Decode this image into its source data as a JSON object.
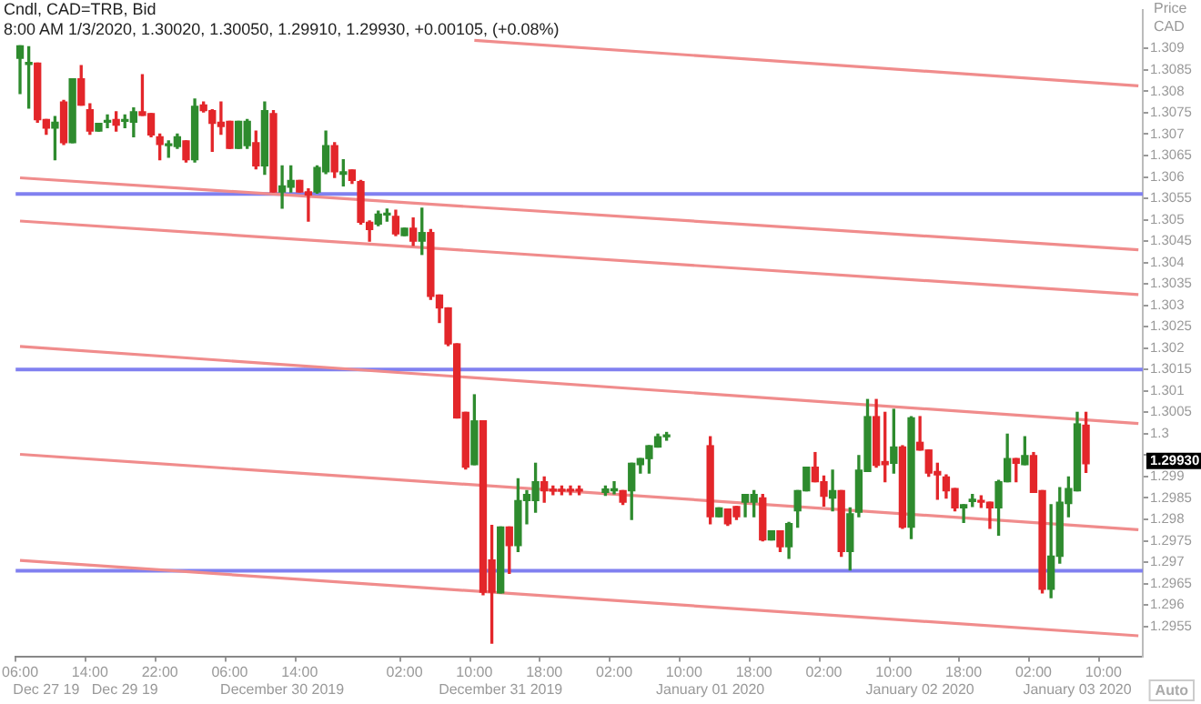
{
  "chart_data": {
    "type": "candlestick",
    "title": "Cndl, CAD=TRB, Bid",
    "subtitle": "8:00 AM 1/3/2020, 1.30020, 1.30050, 1.29910, 1.29930, +0.00105, (+0.08%)",
    "ylabel": "Price CAD",
    "categories": [
      "06:00",
      null,
      null,
      "\nDec 27 19",
      null,
      null,
      null,
      null,
      "14:00",
      null,
      null,
      null,
      "\nDec 29 19",
      null,
      null,
      null,
      "22:00",
      null,
      null,
      null,
      null,
      null,
      null,
      null,
      "06:00",
      null,
      null,
      null,
      null,
      null,
      "\nDecember 30 2019",
      null,
      "14:00",
      null,
      null,
      null,
      null,
      null,
      null,
      null,
      null,
      null,
      null,
      null,
      "02:00",
      null,
      null,
      null,
      null,
      null,
      null,
      null,
      "10:00",
      null,
      null,
      "\nDecember 31 2019",
      null,
      null,
      null,
      null,
      "18:00",
      null,
      null,
      null,
      null,
      null,
      null,
      null,
      "02:00",
      null,
      null,
      null,
      null,
      null,
      null,
      null,
      "10:00",
      null,
      null,
      "\nJanuary 01 2020",
      null,
      null,
      null,
      null,
      "18:00",
      null,
      null,
      null,
      null,
      null,
      null,
      null,
      "02:00",
      null,
      null,
      null,
      null,
      null,
      null,
      null,
      "10:00",
      null,
      null,
      "\nJanuary 02 2020",
      null,
      null,
      null,
      null,
      "18:00",
      null,
      null,
      null,
      null,
      null,
      null,
      null,
      "02:00",
      null,
      null,
      null,
      null,
      "\nJanuary 03 2020",
      null,
      null,
      "10:00",
      null,
      null,
      null,
      null
    ],
    "ohlc": [
      [
        1.30877,
        1.30906,
        1.30795,
        1.30906
      ],
      [
        1.30863,
        1.30904,
        1.30761,
        1.30863
      ],
      [
        1.30866,
        1.30866,
        1.30728,
        1.30734
      ],
      [
        1.30734,
        1.30734,
        1.307,
        1.30714
      ],
      [
        1.30714,
        1.30741,
        1.3064,
        1.30728
      ],
      [
        1.30775,
        1.30779,
        1.30676,
        1.3068
      ],
      [
        1.3068,
        1.30829,
        1.3068,
        1.30829
      ],
      [
        1.30829,
        1.3086,
        1.30768,
        1.30768
      ],
      [
        1.30757,
        1.30771,
        1.307,
        1.30707
      ],
      [
        1.30707,
        1.30725,
        1.30707,
        1.30725
      ],
      [
        1.30728,
        1.30745,
        1.30715,
        1.30728
      ],
      [
        1.30734,
        1.30752,
        1.30707,
        1.30721
      ],
      [
        1.3073,
        1.30745,
        1.30715,
        1.3073
      ],
      [
        1.30728,
        1.30761,
        1.30694,
        1.30752
      ],
      [
        1.30752,
        1.30839,
        1.30744,
        1.30744
      ],
      [
        1.30748,
        1.30748,
        1.30694,
        1.30698
      ],
      [
        1.30694,
        1.307,
        1.3064,
        1.30676
      ],
      [
        1.30673,
        1.30684,
        1.30646,
        1.30673
      ],
      [
        1.30671,
        1.307,
        1.30667,
        1.30694
      ],
      [
        1.30684,
        1.30684,
        1.30635,
        1.3064
      ],
      [
        1.3064,
        1.30782,
        1.30635,
        1.30765
      ],
      [
        1.30768,
        1.30775,
        1.30752,
        1.30755
      ],
      [
        1.30755,
        1.30757,
        1.3066,
        1.30725
      ],
      [
        1.30728,
        1.30775,
        1.307,
        1.30718
      ],
      [
        1.3073,
        1.3073,
        1.30667,
        1.30667
      ],
      [
        1.30667,
        1.3073,
        1.30667,
        1.3073
      ],
      [
        1.30673,
        1.30734,
        1.30667,
        1.3073
      ],
      [
        1.3068,
        1.30707,
        1.30619,
        1.30626
      ],
      [
        1.30626,
        1.30775,
        1.30606,
        1.30755
      ],
      [
        1.30748,
        1.30755,
        1.30565,
        1.30565
      ],
      [
        1.30565,
        1.30626,
        1.30527,
        1.30579
      ],
      [
        1.30576,
        1.30626,
        1.30565,
        1.30592
      ],
      [
        1.30592,
        1.30592,
        1.30565,
        1.30565
      ],
      [
        1.30565,
        1.30572,
        1.30497,
        1.30558
      ],
      [
        1.30565,
        1.30626,
        1.30562,
        1.30622
      ],
      [
        1.30612,
        1.30707,
        1.30608,
        1.30673
      ],
      [
        1.30673,
        1.3068,
        1.30599,
        1.30612
      ],
      [
        1.30606,
        1.3064,
        1.30579,
        1.30612
      ],
      [
        1.30616,
        1.30616,
        1.30585,
        1.30592
      ],
      [
        1.30589,
        1.30592,
        1.3049,
        1.30494
      ],
      [
        1.30494,
        1.30497,
        1.3045,
        1.30477
      ],
      [
        1.3049,
        1.3052,
        1.30486,
        1.30513
      ],
      [
        1.30511,
        1.30525,
        1.30497,
        1.30511
      ],
      [
        1.30508,
        1.30522,
        1.30463,
        1.30467
      ],
      [
        1.30463,
        1.3048,
        1.30463,
        1.3048
      ],
      [
        1.3048,
        1.30504,
        1.3044,
        1.3045
      ],
      [
        1.3045,
        1.30527,
        1.30419,
        1.3047
      ],
      [
        1.3047,
        1.30477,
        1.30314,
        1.30321
      ],
      [
        1.30324,
        1.30324,
        1.3026,
        1.30294
      ],
      [
        1.30294,
        1.30294,
        1.30206,
        1.3021
      ],
      [
        1.3021,
        1.3021,
        1.30037,
        1.30037
      ],
      [
        1.3005,
        1.3005,
        1.29918,
        1.29922
      ],
      [
        1.29928,
        1.30091,
        1.29928,
        1.3003
      ],
      [
        1.3003,
        1.3003,
        1.29624,
        1.2963
      ],
      [
        1.29705,
        1.29786,
        1.29511,
        1.2963
      ],
      [
        1.29628,
        1.29782,
        1.29628,
        1.29782
      ],
      [
        1.29782,
        1.29782,
        1.29674,
        1.29739
      ],
      [
        1.29739,
        1.29895,
        1.29725,
        1.29844
      ],
      [
        1.29844,
        1.29867,
        1.2979,
        1.29858
      ],
      [
        1.29844,
        1.29931,
        1.29817,
        1.29888
      ],
      [
        1.29888,
        1.29899,
        1.2984,
        1.29867
      ],
      [
        1.29868,
        1.29878,
        1.29858,
        1.29866
      ],
      [
        1.29868,
        1.29878,
        1.29858,
        1.29866
      ],
      [
        1.29868,
        1.29878,
        1.29858,
        1.29866
      ],
      [
        1.29868,
        1.29878,
        1.29858,
        1.29866
      ],
      null,
      null,
      [
        1.29863,
        1.29878,
        1.29856,
        1.29871
      ],
      [
        1.29867,
        1.29888,
        1.2986,
        1.29867
      ],
      [
        1.29867,
        1.29867,
        1.29835,
        1.2984
      ],
      [
        1.29867,
        1.29931,
        1.298,
        1.29931
      ],
      [
        1.29928,
        1.29942,
        1.29908,
        1.29942
      ],
      [
        1.29942,
        1.29972,
        1.29908,
        1.29972
      ],
      [
        1.29969,
        1.29999,
        1.29969,
        1.29993
      ],
      [
        1.29993,
        1.30003,
        1.29985,
        1.29993
      ],
      null,
      null,
      null,
      null,
      [
        1.29972,
        1.29993,
        1.2979,
        1.29806
      ],
      [
        1.29806,
        1.29827,
        1.29806,
        1.29827
      ],
      [
        1.29824,
        1.29824,
        1.29786,
        1.2979
      ],
      [
        1.2983,
        1.2983,
        1.298,
        1.29806
      ],
      [
        1.2984,
        1.29858,
        1.29806,
        1.29858
      ],
      [
        1.2984,
        1.29867,
        1.29806,
        1.29858
      ],
      [
        1.2985,
        1.29858,
        1.2975,
        1.29752
      ],
      [
        1.29752,
        1.29773,
        1.29752,
        1.29773
      ],
      [
        1.29773,
        1.29773,
        1.29725,
        1.29736
      ],
      [
        1.29736,
        1.29793,
        1.29709,
        1.2979
      ],
      [
        1.2982,
        1.29867,
        1.29782,
        1.29867
      ],
      [
        1.29867,
        1.29922,
        1.29867,
        1.29922
      ],
      [
        1.29922,
        1.29956,
        1.29888,
        1.29888
      ],
      [
        1.29888,
        1.29901,
        1.29831,
        1.29854
      ],
      [
        1.2985,
        1.29915,
        1.2982,
        1.29867
      ],
      [
        1.29867,
        1.29867,
        1.29714,
        1.29725
      ],
      [
        1.29725,
        1.29827,
        1.29682,
        1.29813
      ],
      [
        1.29817,
        1.29949,
        1.29806,
        1.29915
      ],
      [
        1.29912,
        1.3008,
        1.29912,
        1.3004
      ],
      [
        1.3004,
        1.3008,
        1.29922,
        1.29926
      ],
      [
        1.29935,
        1.3005,
        1.29888,
        1.29928
      ],
      [
        1.29931,
        1.30057,
        1.29908,
        1.29969
      ],
      [
        1.29969,
        1.29972,
        1.29779,
        1.29782
      ],
      [
        1.29782,
        1.3004,
        1.29755,
        1.30037
      ],
      [
        1.2998,
        1.3004,
        1.29962,
        1.29962
      ],
      [
        1.29962,
        1.29962,
        1.29901,
        1.29908
      ],
      [
        1.29912,
        1.29931,
        1.29847,
        1.29904
      ],
      [
        1.29899,
        1.29904,
        1.2985,
        1.29867
      ],
      [
        1.29872,
        1.29872,
        1.2982,
        1.29827
      ],
      [
        1.29827,
        1.29834,
        1.29793,
        1.29834
      ],
      [
        1.29842,
        1.29858,
        1.2983,
        1.29847
      ],
      [
        1.29844,
        1.29855,
        1.29828,
        1.2984
      ],
      [
        1.2984,
        1.2984,
        1.29779,
        1.29827
      ],
      [
        1.29827,
        1.29891,
        1.29763,
        1.29888
      ],
      [
        1.29888,
        1.29999,
        1.29888,
        1.29942
      ],
      [
        1.29942,
        1.29942,
        1.29888,
        1.29931
      ],
      [
        1.29928,
        1.29993,
        1.29928,
        1.29949
      ],
      [
        1.29949,
        1.29956,
        1.29863,
        1.29863
      ],
      [
        1.29867,
        1.29867,
        1.29628,
        1.29637
      ],
      [
        1.29637,
        1.29834,
        1.29617,
        1.29714
      ],
      [
        1.29714,
        1.29874,
        1.29698,
        1.2984
      ],
      [
        1.29837,
        1.29899,
        1.29806,
        1.29872
      ],
      [
        1.29867,
        1.3005,
        1.29867,
        1.30023
      ],
      [
        1.3002,
        1.3005,
        1.2991,
        1.2993
      ],
      null,
      null,
      null,
      null,
      null,
      null
    ],
    "series": [
      {
        "type": "line",
        "color": "#f08c8c",
        "values": [
          null,
          null,
          null,
          null,
          null,
          null,
          null,
          null,
          null,
          null,
          null,
          null,
          null,
          null,
          null,
          null,
          null,
          null,
          null,
          null,
          null,
          null,
          null,
          null,
          null,
          null,
          null,
          null,
          null,
          null,
          null,
          null,
          null,
          null,
          null,
          null,
          null,
          null,
          null,
          null,
          null,
          null,
          null,
          null,
          null,
          null,
          null,
          null,
          null,
          null,
          null,
          null,
          1.30919,
          null,
          null,
          null,
          null,
          null,
          null,
          null,
          null,
          null,
          null,
          null,
          null,
          null,
          null,
          null,
          null,
          null,
          null,
          null,
          null,
          null,
          null,
          null,
          null,
          null,
          null,
          null,
          null,
          null,
          null,
          null,
          null,
          null,
          null,
          null,
          null,
          null,
          null,
          null,
          null,
          null,
          null,
          null,
          null,
          null,
          null,
          null,
          null,
          null,
          null,
          null,
          null,
          null,
          null,
          null,
          null,
          null,
          null,
          null,
          null,
          null,
          null,
          null,
          null,
          null,
          null,
          null,
          null,
          null,
          null,
          null,
          null,
          null,
          null,
          null,
          1.30813
        ]
      },
      {
        "type": "line",
        "color": "#f08c8c",
        "values": [
          1.30598,
          null,
          null,
          null,
          null,
          null,
          null,
          null,
          null,
          null,
          null,
          null,
          null,
          null,
          null,
          null,
          null,
          null,
          null,
          null,
          null,
          null,
          null,
          null,
          null,
          null,
          null,
          null,
          null,
          null,
          null,
          null,
          null,
          null,
          null,
          null,
          null,
          null,
          null,
          null,
          null,
          null,
          null,
          null,
          null,
          null,
          null,
          null,
          null,
          null,
          null,
          null,
          null,
          null,
          null,
          null,
          null,
          null,
          null,
          null,
          null,
          null,
          null,
          null,
          null,
          null,
          null,
          null,
          null,
          null,
          null,
          null,
          null,
          null,
          null,
          null,
          null,
          null,
          null,
          null,
          null,
          null,
          null,
          null,
          null,
          null,
          null,
          null,
          null,
          null,
          null,
          null,
          null,
          null,
          null,
          null,
          null,
          null,
          null,
          null,
          null,
          null,
          null,
          null,
          null,
          null,
          null,
          null,
          null,
          null,
          null,
          null,
          null,
          null,
          null,
          null,
          null,
          null,
          null,
          null,
          null,
          null,
          null,
          null,
          null,
          null,
          null,
          null,
          1.3043
        ]
      },
      {
        "type": "line",
        "color": "#f08c8c",
        "values": [
          1.30497,
          null,
          null,
          null,
          null,
          null,
          null,
          null,
          null,
          null,
          null,
          null,
          null,
          null,
          null,
          null,
          null,
          null,
          null,
          null,
          null,
          null,
          null,
          null,
          null,
          null,
          null,
          null,
          null,
          null,
          null,
          null,
          null,
          null,
          null,
          null,
          null,
          null,
          null,
          null,
          null,
          null,
          null,
          null,
          null,
          null,
          null,
          null,
          null,
          null,
          null,
          null,
          null,
          null,
          null,
          null,
          null,
          null,
          null,
          null,
          null,
          null,
          null,
          null,
          null,
          null,
          null,
          null,
          null,
          null,
          null,
          null,
          null,
          null,
          null,
          null,
          null,
          null,
          null,
          null,
          null,
          null,
          null,
          null,
          null,
          null,
          null,
          null,
          null,
          null,
          null,
          null,
          null,
          null,
          null,
          null,
          null,
          null,
          null,
          null,
          null,
          null,
          null,
          null,
          null,
          null,
          null,
          null,
          null,
          null,
          null,
          null,
          null,
          null,
          null,
          null,
          null,
          null,
          null,
          null,
          null,
          null,
          null,
          null,
          null,
          null,
          null,
          null,
          1.30325
        ]
      },
      {
        "type": "line",
        "color": "#f08c8c",
        "values": [
          1.30204,
          null,
          null,
          null,
          null,
          null,
          null,
          null,
          null,
          null,
          null,
          null,
          null,
          null,
          null,
          null,
          null,
          null,
          null,
          null,
          null,
          null,
          null,
          null,
          null,
          null,
          null,
          null,
          null,
          null,
          null,
          null,
          null,
          null,
          null,
          null,
          null,
          null,
          null,
          null,
          null,
          null,
          null,
          null,
          null,
          null,
          null,
          null,
          null,
          null,
          null,
          null,
          null,
          null,
          null,
          null,
          null,
          null,
          null,
          null,
          null,
          null,
          null,
          null,
          null,
          null,
          null,
          null,
          null,
          null,
          null,
          null,
          null,
          null,
          null,
          null,
          null,
          null,
          null,
          null,
          null,
          null,
          null,
          null,
          null,
          null,
          null,
          null,
          null,
          null,
          null,
          null,
          null,
          null,
          null,
          null,
          null,
          null,
          null,
          null,
          null,
          null,
          null,
          null,
          null,
          null,
          null,
          null,
          null,
          null,
          null,
          null,
          null,
          null,
          null,
          null,
          null,
          null,
          null,
          null,
          null,
          null,
          null,
          null,
          null,
          null,
          null,
          null,
          1.30024
        ]
      },
      {
        "type": "line",
        "color": "#f08c8c",
        "values": [
          1.29952,
          null,
          null,
          null,
          null,
          null,
          null,
          null,
          null,
          null,
          null,
          null,
          null,
          null,
          null,
          null,
          null,
          null,
          null,
          null,
          null,
          null,
          null,
          null,
          null,
          null,
          null,
          null,
          null,
          null,
          null,
          null,
          null,
          null,
          null,
          null,
          null,
          null,
          null,
          null,
          null,
          null,
          null,
          null,
          null,
          null,
          null,
          null,
          null,
          null,
          null,
          null,
          null,
          null,
          null,
          null,
          null,
          null,
          null,
          null,
          null,
          null,
          null,
          null,
          null,
          null,
          null,
          null,
          null,
          null,
          null,
          null,
          null,
          null,
          null,
          null,
          null,
          null,
          null,
          null,
          null,
          null,
          null,
          null,
          null,
          null,
          null,
          null,
          null,
          null,
          null,
          null,
          null,
          null,
          null,
          null,
          null,
          null,
          null,
          null,
          null,
          null,
          null,
          null,
          null,
          null,
          null,
          null,
          null,
          null,
          null,
          null,
          null,
          null,
          null,
          null,
          null,
          null,
          null,
          null,
          null,
          null,
          null,
          null,
          null,
          null,
          null,
          null,
          1.29776
        ]
      },
      {
        "type": "line",
        "color": "#f08c8c",
        "values": [
          1.29704,
          null,
          null,
          null,
          null,
          null,
          null,
          null,
          null,
          null,
          null,
          null,
          null,
          null,
          null,
          null,
          null,
          null,
          null,
          null,
          null,
          null,
          null,
          null,
          null,
          null,
          null,
          null,
          null,
          null,
          null,
          null,
          null,
          null,
          null,
          null,
          null,
          null,
          null,
          null,
          null,
          null,
          null,
          null,
          null,
          null,
          null,
          null,
          null,
          null,
          null,
          null,
          null,
          null,
          null,
          null,
          null,
          null,
          null,
          null,
          null,
          null,
          null,
          null,
          null,
          null,
          null,
          null,
          null,
          null,
          null,
          null,
          null,
          null,
          null,
          null,
          null,
          null,
          null,
          null,
          null,
          null,
          null,
          null,
          null,
          null,
          null,
          null,
          null,
          null,
          null,
          null,
          null,
          null,
          null,
          null,
          null,
          null,
          null,
          null,
          null,
          null,
          null,
          null,
          null,
          null,
          null,
          null,
          null,
          null,
          null,
          null,
          null,
          null,
          null,
          null,
          null,
          null,
          null,
          null,
          null,
          null,
          null,
          null,
          null,
          null,
          null,
          null,
          1.29528
        ]
      }
    ],
    "ref_lines": [
      {
        "axis": "y",
        "value": 1.3056,
        "color": "#8080f0"
      },
      {
        "axis": "y",
        "value": 1.3015,
        "color": "#8080f0"
      },
      {
        "axis": "y",
        "value": 1.2968,
        "color": "#8080f0"
      }
    ],
    "ylim": [
      1.2948,
      1.3099
    ],
    "yticks": [
      1.2955,
      1.296,
      1.2965,
      1.297,
      1.2975,
      1.298,
      1.2985,
      1.299,
      {
        "value": 1.2995,
        "label": null
      },
      1.3,
      1.3005,
      1.301,
      1.3015,
      1.302,
      1.3025,
      1.303,
      1.3035,
      1.304,
      1.3045,
      1.305,
      1.3055,
      1.306,
      1.3065,
      1.307,
      1.3075,
      1.308,
      1.3085,
      1.309
    ],
    "grid": false,
    "legend": false,
    "annotations": [
      "1.29930",
      "Auto"
    ]
  }
}
